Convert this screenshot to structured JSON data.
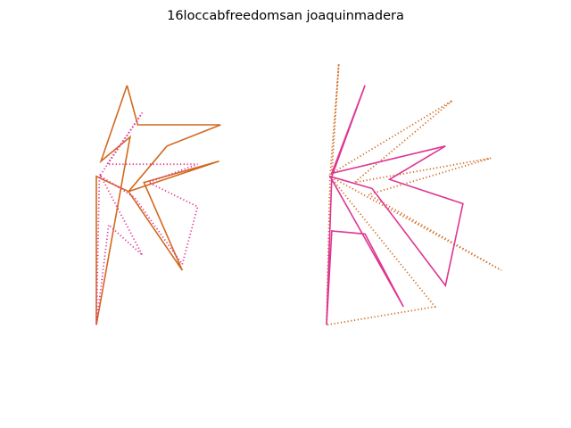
{
  "chart_data": {
    "type": "line",
    "title": "16loccabfreedomsan joaquinmadera",
    "xlabel": "",
    "ylabel": "",
    "axes_visible": false,
    "grid": false,
    "legend": "none",
    "colors": {
      "orange": "#d2691e",
      "magenta": "#de3593"
    },
    "panels": [
      {
        "name": "left",
        "xlim": [
          0,
          1
        ],
        "ylim": [
          0,
          1
        ],
        "series": [
          {
            "color": "#d2691e",
            "linestyle": "solid",
            "points": [
              [
                0.2,
                0.07
              ],
              [
                0.03,
                0.32
              ],
              [
                0.22,
                0.24
              ],
              [
                0.0,
                0.86
              ],
              [
                0.0,
                0.37
              ],
              [
                0.21,
                0.42
              ],
              [
                0.8,
                0.32
              ],
              [
                0.31,
                0.39
              ],
              [
                0.56,
                0.68
              ],
              [
                0.21,
                0.42
              ],
              [
                0.46,
                0.27
              ],
              [
                0.81,
                0.2
              ],
              [
                0.27,
                0.2
              ],
              [
                0.2,
                0.07
              ]
            ]
          },
          {
            "color": "#de3593",
            "linestyle": "dotted",
            "points": [
              [
                0.3,
                0.16
              ],
              [
                0.07,
                0.33
              ],
              [
                0.66,
                0.33
              ],
              [
                0.34,
                0.39
              ],
              [
                0.66,
                0.47
              ],
              [
                0.56,
                0.66
              ],
              [
                0.25,
                0.44
              ],
              [
                0.03,
                0.37
              ],
              [
                0.3,
                0.63
              ],
              [
                0.08,
                0.53
              ],
              [
                0.0,
                0.86
              ],
              [
                0.02,
                0.37
              ],
              [
                0.3,
                0.16
              ]
            ]
          }
        ]
      },
      {
        "name": "right",
        "xlim": [
          0,
          1
        ],
        "ylim": [
          0,
          1
        ],
        "series": [
          {
            "color": "#d2691e",
            "linestyle": "dotted",
            "points": [
              [
                0.07,
                0.0
              ],
              [
                0.03,
                0.36
              ],
              [
                0.72,
                0.12
              ],
              [
                0.16,
                0.39
              ],
              [
                0.94,
                0.31
              ],
              [
                0.24,
                0.43
              ],
              [
                1.0,
                0.68
              ],
              [
                0.02,
                0.37
              ],
              [
                0.62,
                0.8
              ],
              [
                0.0,
                0.86
              ],
              [
                0.02,
                0.37
              ],
              [
                0.07,
                0.0
              ]
            ]
          },
          {
            "color": "#de3593",
            "linestyle": "solid",
            "points": [
              [
                0.22,
                0.07
              ],
              [
                0.03,
                0.36
              ],
              [
                0.68,
                0.27
              ],
              [
                0.36,
                0.38
              ],
              [
                0.78,
                0.46
              ],
              [
                0.68,
                0.73
              ],
              [
                0.26,
                0.41
              ],
              [
                0.02,
                0.37
              ],
              [
                0.44,
                0.8
              ],
              [
                0.22,
                0.56
              ],
              [
                0.03,
                0.55
              ],
              [
                0.0,
                0.86
              ],
              [
                0.03,
                0.37
              ],
              [
                0.22,
                0.07
              ]
            ]
          }
        ]
      }
    ]
  }
}
